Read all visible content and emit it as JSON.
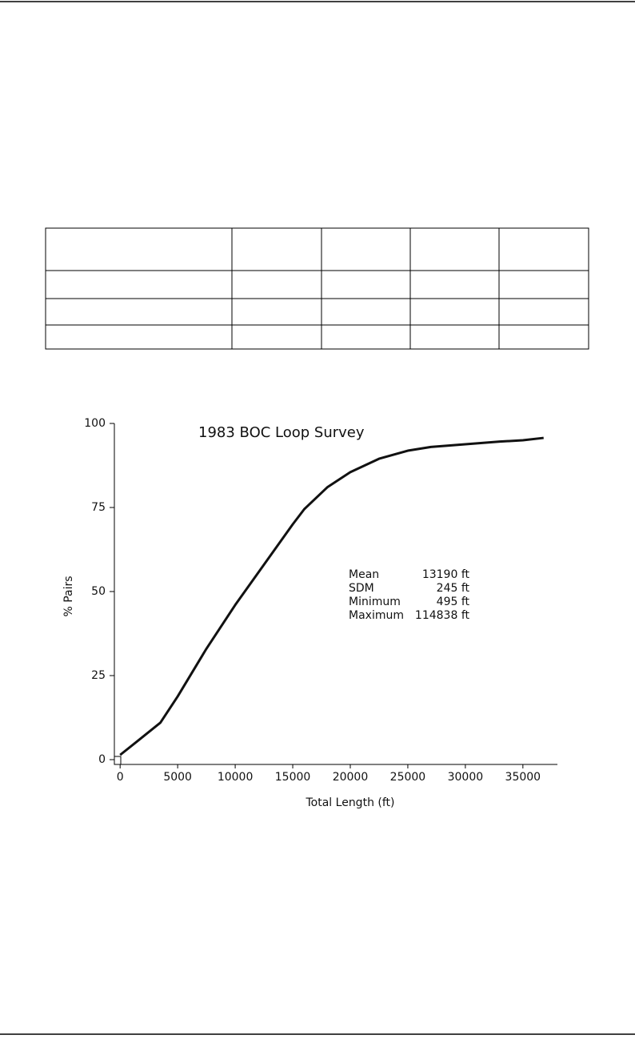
{
  "chart_data": {
    "type": "line",
    "title": "1983 BOC Loop Survey",
    "x_label": "Total Length (ft)",
    "y_label": "% Pairs",
    "x": [
      0,
      1500,
      3500,
      5000,
      7500,
      10000,
      12500,
      15000,
      16000,
      18000,
      20000,
      22500,
      25000,
      27000,
      30000,
      33000,
      35000,
      36800
    ],
    "series": [
      {
        "name": "Pairs",
        "color": "#111111",
        "values": [
          1.4,
          5.5,
          11,
          18.8,
          33,
          46,
          58,
          70,
          74.5,
          81,
          85.5,
          89.5,
          91.9,
          93,
          93.8,
          94.6,
          95,
          95.7
        ]
      }
    ],
    "xlim": [
      -500,
      38000
    ],
    "xticks": [
      0,
      5000,
      10000,
      15000,
      20000,
      25000,
      30000,
      35000
    ],
    "ylim": [
      0,
      100
    ],
    "yticks": [
      0,
      25,
      50,
      75,
      100
    ],
    "grid": false,
    "stats": [
      {
        "label": "Mean",
        "value": "13190 ft"
      },
      {
        "label": "SDM",
        "value": "245 ft"
      },
      {
        "label": "Minimum",
        "value": "495 ft"
      },
      {
        "label": "Maximum",
        "value": "114838 ft"
      }
    ]
  }
}
